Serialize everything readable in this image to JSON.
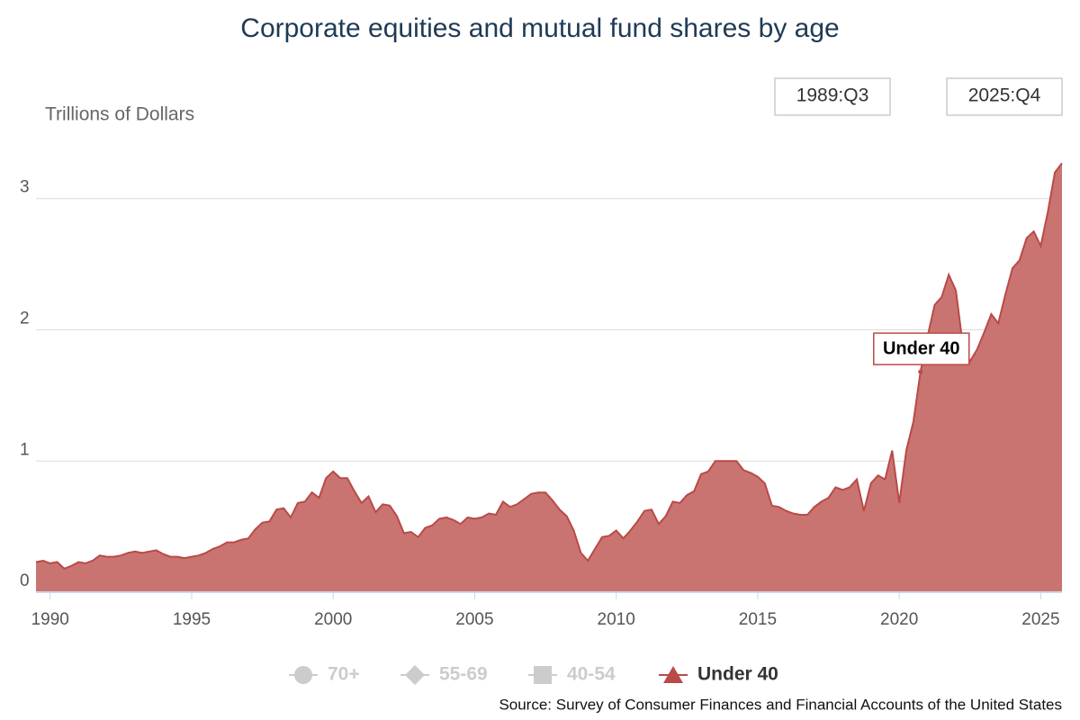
{
  "chart_data": {
    "type": "area",
    "title": "Corporate equities and mutual fund shares by age",
    "y_axis_label": "Trillions of Dollars",
    "range_start": "1989:Q3",
    "range_end": "2025:Q4",
    "source": "Source: Survey of Consumer Finances and Financial Accounts of the United States",
    "inactive_legend": [
      {
        "name": "70+",
        "marker": "circle"
      },
      {
        "name": "55-69",
        "marker": "diamond"
      },
      {
        "name": "40-54",
        "marker": "square"
      }
    ],
    "legend_marker": "triangle",
    "annotation_index": 125,
    "xlim": [
      1989.5,
      2025.75
    ],
    "xticks": [
      1990,
      1995,
      2000,
      2005,
      2010,
      2015,
      2020,
      2025
    ],
    "ylim": [
      0,
      3.3
    ],
    "yticks": [
      0,
      1,
      2,
      3
    ],
    "grid": true,
    "x": [
      1989.5,
      1989.75,
      1990,
      1990.25,
      1990.5,
      1990.75,
      1991,
      1991.25,
      1991.5,
      1991.75,
      1992,
      1992.25,
      1992.5,
      1992.75,
      1993,
      1993.25,
      1993.5,
      1993.75,
      1994,
      1994.25,
      1994.5,
      1994.75,
      1995,
      1995.25,
      1995.5,
      1995.75,
      1996,
      1996.25,
      1996.5,
      1996.75,
      1997,
      1997.25,
      1997.5,
      1997.75,
      1998,
      1998.25,
      1998.5,
      1998.75,
      1999,
      1999.25,
      1999.5,
      1999.75,
      2000,
      2000.25,
      2000.5,
      2000.75,
      2001,
      2001.25,
      2001.5,
      2001.75,
      2002,
      2002.25,
      2002.5,
      2002.75,
      2003,
      2003.25,
      2003.5,
      2003.75,
      2004,
      2004.25,
      2004.5,
      2004.75,
      2005,
      2005.25,
      2005.5,
      2005.75,
      2006,
      2006.25,
      2006.5,
      2006.75,
      2007,
      2007.25,
      2007.5,
      2007.75,
      2008,
      2008.25,
      2008.5,
      2008.75,
      2009,
      2009.25,
      2009.5,
      2009.75,
      2010,
      2010.25,
      2010.5,
      2010.75,
      2011,
      2011.25,
      2011.5,
      2011.75,
      2012,
      2012.25,
      2012.5,
      2012.75,
      2013,
      2013.25,
      2013.5,
      2013.75,
      2014,
      2014.25,
      2014.5,
      2014.75,
      2015,
      2015.25,
      2015.5,
      2015.75,
      2016,
      2016.25,
      2016.5,
      2016.75,
      2017,
      2017.25,
      2017.5,
      2017.75,
      2018,
      2018.25,
      2018.5,
      2018.75,
      2019,
      2019.25,
      2019.5,
      2019.75,
      2020,
      2020.25,
      2020.5,
      2020.75,
      2021,
      2021.25,
      2021.5,
      2021.75,
      2022,
      2022.25,
      2022.5,
      2022.75,
      2023,
      2023.25,
      2023.5,
      2023.75,
      2024,
      2024.25,
      2024.5,
      2024.75,
      2025,
      2025.25,
      2025.5,
      2025.75
    ],
    "series": [
      {
        "name": "Under 40",
        "color": "#b94a48",
        "fill": "#c97471",
        "values": [
          0.23,
          0.24,
          0.22,
          0.23,
          0.18,
          0.2,
          0.23,
          0.22,
          0.24,
          0.28,
          0.27,
          0.27,
          0.28,
          0.3,
          0.31,
          0.3,
          0.31,
          0.32,
          0.29,
          0.27,
          0.27,
          0.26,
          0.27,
          0.28,
          0.3,
          0.33,
          0.35,
          0.38,
          0.38,
          0.4,
          0.41,
          0.48,
          0.53,
          0.54,
          0.63,
          0.64,
          0.57,
          0.68,
          0.69,
          0.76,
          0.72,
          0.87,
          0.92,
          0.87,
          0.87,
          0.77,
          0.68,
          0.73,
          0.61,
          0.67,
          0.66,
          0.58,
          0.45,
          0.46,
          0.42,
          0.49,
          0.51,
          0.56,
          0.57,
          0.55,
          0.52,
          0.57,
          0.56,
          0.57,
          0.6,
          0.59,
          0.69,
          0.65,
          0.67,
          0.71,
          0.75,
          0.76,
          0.76,
          0.7,
          0.63,
          0.58,
          0.47,
          0.3,
          0.24,
          0.33,
          0.42,
          0.43,
          0.47,
          0.41,
          0.47,
          0.54,
          0.62,
          0.63,
          0.52,
          0.58,
          0.69,
          0.68,
          0.74,
          0.77,
          0.9,
          0.92,
          1.0,
          1.0,
          1.0,
          1.0,
          0.93,
          0.91,
          0.88,
          0.83,
          0.66,
          0.65,
          0.62,
          0.6,
          0.59,
          0.59,
          0.65,
          0.69,
          0.72,
          0.8,
          0.78,
          0.8,
          0.86,
          0.62,
          0.83,
          0.89,
          0.86,
          1.08,
          0.68,
          1.08,
          1.3,
          1.68,
          1.95,
          2.19,
          2.25,
          2.42,
          2.3,
          1.88,
          1.76,
          1.85,
          1.98,
          2.12,
          2.05,
          2.27,
          2.47,
          2.53,
          2.7,
          2.75,
          2.64,
          2.9,
          3.2,
          3.27
        ]
      }
    ]
  }
}
